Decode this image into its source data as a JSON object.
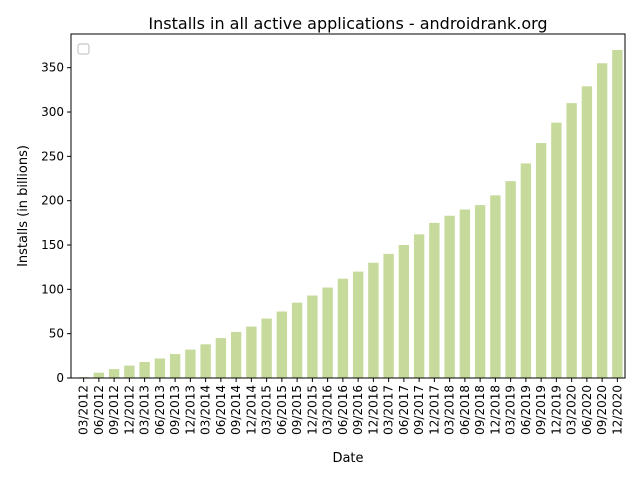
{
  "chart_data": {
    "type": "bar",
    "title": "Installs in all active applications - androidrank.org",
    "xlabel": "Date",
    "ylabel": "Installs (in billions)",
    "ylim": [
      0,
      388
    ],
    "yticks": [
      0,
      50,
      100,
      150,
      200,
      250,
      300,
      350
    ],
    "grid": false,
    "legend": "top-left, empty",
    "bar_color": "#c5da9b",
    "categories": [
      "03/2012",
      "06/2012",
      "09/2012",
      "12/2012",
      "03/2013",
      "06/2013",
      "09/2013",
      "12/2013",
      "03/2014",
      "06/2014",
      "09/2014",
      "12/2014",
      "03/2015",
      "06/2015",
      "09/2015",
      "12/2015",
      "03/2016",
      "06/2016",
      "09/2016",
      "12/2016",
      "03/2017",
      "06/2017",
      "09/2017",
      "12/2017",
      "03/2018",
      "06/2018",
      "09/2018",
      "12/2018",
      "03/2019",
      "06/2019",
      "09/2019",
      "12/2019",
      "03/2020",
      "06/2020",
      "09/2020",
      "12/2020"
    ],
    "values": [
      1,
      6,
      10,
      14,
      18,
      22,
      27,
      32,
      38,
      45,
      52,
      58,
      67,
      75,
      85,
      93,
      102,
      112,
      120,
      130,
      140,
      150,
      162,
      175,
      183,
      190,
      195,
      206,
      222,
      242,
      265,
      288,
      310,
      329,
      355,
      370
    ]
  }
}
